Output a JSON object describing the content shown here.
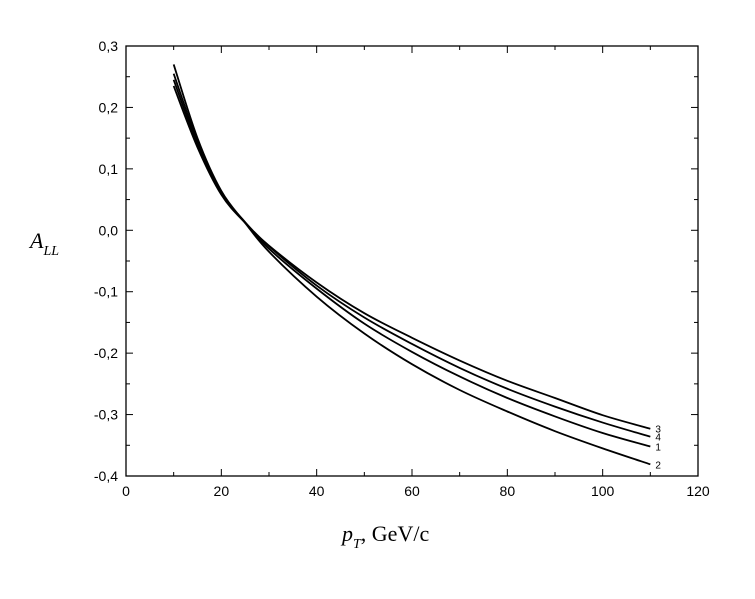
{
  "chart_data": {
    "type": "line",
    "title": "",
    "xlabel": {
      "main": "p",
      "sub": "T",
      "suffix": ", GeV/c"
    },
    "ylabel": {
      "main": "A",
      "sub": "LL"
    },
    "xlim": [
      0,
      120
    ],
    "ylim": [
      -0.4,
      0.3
    ],
    "x_ticks": [
      0,
      20,
      40,
      60,
      80,
      100,
      120
    ],
    "x_tick_labels": [
      "0",
      "20",
      "40",
      "60",
      "80",
      "100",
      "120"
    ],
    "y_ticks": [
      0.3,
      0.2,
      0.1,
      0.0,
      -0.1,
      -0.2,
      -0.3,
      -0.4
    ],
    "y_tick_labels": [
      "0,3",
      "0,2",
      "0,1",
      "0,0",
      "-0,1",
      "-0,2",
      "-0,3",
      "-0,4"
    ],
    "grid": false,
    "legend": "inline labels at curve ends",
    "x": [
      10,
      15,
      20,
      25,
      30,
      40,
      50,
      60,
      70,
      80,
      90,
      100,
      110
    ],
    "series": [
      {
        "name": "3",
        "values": [
          0.235,
          0.135,
          0.058,
          0.012,
          -0.025,
          -0.085,
          -0.135,
          -0.175,
          -0.212,
          -0.245,
          -0.273,
          -0.301,
          -0.323
        ]
      },
      {
        "name": "4",
        "values": [
          0.245,
          0.14,
          0.06,
          0.013,
          -0.026,
          -0.09,
          -0.142,
          -0.185,
          -0.224,
          -0.258,
          -0.287,
          -0.313,
          -0.336
        ]
      },
      {
        "name": "1",
        "values": [
          0.255,
          0.145,
          0.062,
          0.013,
          -0.03,
          -0.095,
          -0.152,
          -0.198,
          -0.238,
          -0.273,
          -0.303,
          -0.33,
          -0.352
        ]
      },
      {
        "name": "2",
        "values": [
          0.27,
          0.15,
          0.064,
          0.012,
          -0.035,
          -0.108,
          -0.168,
          -0.218,
          -0.26,
          -0.295,
          -0.327,
          -0.355,
          -0.381
        ]
      }
    ]
  }
}
